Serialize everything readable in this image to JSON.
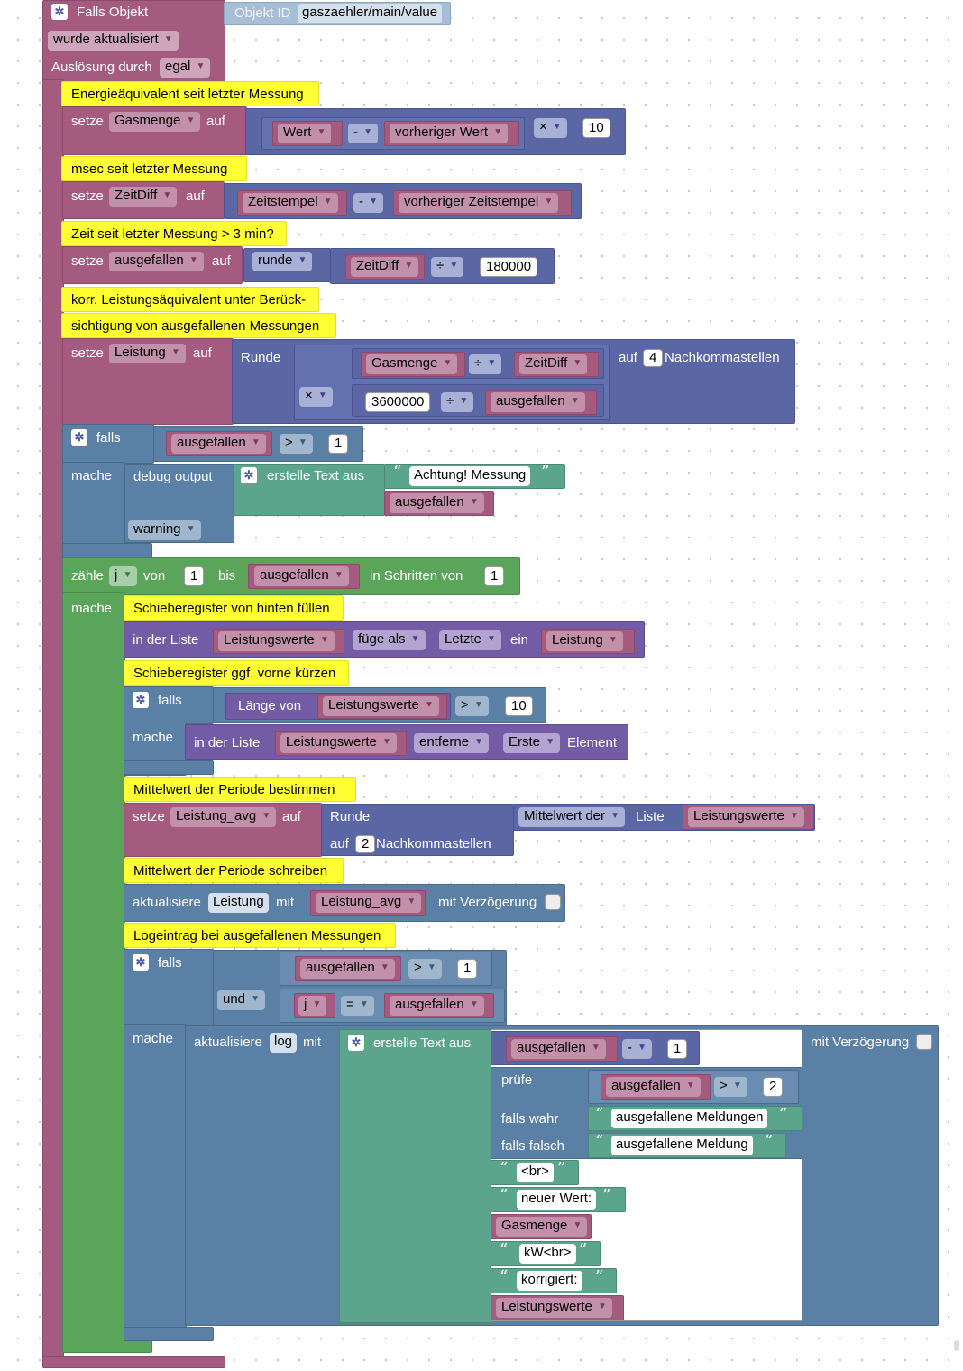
{
  "trigger": {
    "title": "Falls Objekt",
    "object_id_label": "Objekt ID",
    "object_id": "gaszaehler/main/value",
    "event": "wurde aktualisiert",
    "cause_label": "Auslösung durch",
    "cause": "egal"
  },
  "w": {
    "setze": "setze",
    "auf": "auf",
    "falls": "falls",
    "mache": "mache",
    "runde_title": "Runde",
    "auf_label": "auf",
    "nachkomma": "Nachkommastellen"
  },
  "c1": {
    "comment": "Energieäquivalent seit letzter Messung",
    "var": "Gasmenge",
    "a": "Wert",
    "op": "-",
    "b": "vorheriger Wert",
    "mul": "×",
    "n": "10"
  },
  "c2": {
    "comment": "msec seit letzter Messung",
    "var": "ZeitDiff",
    "a": "Zeitstempel",
    "op": "-",
    "b": "vorheriger Zeitstempel"
  },
  "c3": {
    "comment": "Zeit seit letzter Messung > 3 min?",
    "var": "ausgefallen",
    "round": "runde",
    "a": "ZeitDiff",
    "op": "÷",
    "n": "180000"
  },
  "c4": {
    "comment1": "korr. Leistungsäquivalent unter Berück-",
    "comment2": "sichtigung von ausgefallenen Messungen",
    "var": "Leistung",
    "a": "Gasmenge",
    "div": "÷",
    "b": "ZeitDiff",
    "mul": "×",
    "n3": "3600000",
    "div2": "÷",
    "c": "ausgefallen",
    "digits": "4"
  },
  "if1": {
    "a": "ausgefallen",
    "op": ">",
    "n": "1",
    "debug": "debug output",
    "textjoin": "erstelle Text aus",
    "str": "Achtung! Messung",
    "v": "ausgefallen",
    "level": "warning"
  },
  "loop": {
    "label": "zähle",
    "var": "j",
    "from": "von",
    "n1": "1",
    "to": "bis",
    "to_var": "ausgefallen",
    "step": "in Schritten von",
    "n2": "1"
  },
  "ls1": {
    "comment": "Schieberegister von hinten füllen",
    "in": "in der Liste",
    "list": "Leistungswerte",
    "mode": "füge als",
    "pos": "Letzte",
    "ein": "ein",
    "val": "Leistung"
  },
  "ls2": {
    "comment": "Schieberegister ggf. vorne kürzen",
    "len": "Länge von",
    "list": "Leistungswerte",
    "op": ">",
    "n": "10",
    "in": "in der Liste",
    "list2": "Leistungswerte",
    "mode": "entferne",
    "pos": "Erste",
    "elem": "Element"
  },
  "avg": {
    "comment": "Mittelwert der Periode bestimmen",
    "var": "Leistung_avg",
    "op": "Mittelwert der",
    "liste": "Liste",
    "list": "Leistungswerte",
    "digits": "2"
  },
  "upd": {
    "comment": "Mittelwert der Periode schreiben",
    "label": "aktualisiere",
    "state": "Leistung",
    "mit": "mit",
    "val": "Leistung_avg",
    "delay": "mit Verzögerung"
  },
  "log": {
    "comment": "Logeintrag bei ausgefallenen Messungen",
    "a": "ausgefallen",
    "op": ">",
    "n": "1",
    "and": "und",
    "b": "j",
    "eq": "=",
    "c": "ausgefallen",
    "label": "aktualisiere",
    "state": "log",
    "mit": "mit",
    "textjoin": "erstelle Text aus",
    "delay": "mit Verzögerung",
    "minus_var": "ausgefallen",
    "minus": "-",
    "minus_n": "1",
    "pruefe": "prüfe",
    "cmp_var": "ausgefallen",
    "cmp": ">",
    "cmp_n": "2",
    "true_label": "falls wahr",
    "true_str": "ausgefallene Meldungen",
    "false_label": "falls falsch",
    "false_str": "ausgefallene Meldung",
    "s_br": "<br>",
    "s_new": "neuer Wert:",
    "v_gas": "Gasmenge",
    "s_kw": "kW<br>",
    "s_corr": "korrigiert:",
    "v_list": "Leistungswerte"
  },
  "icons": [
    "gear-icon",
    "dropdown-arrow-icon",
    "quote-open-icon",
    "quote-close-icon",
    "checkbox-icon"
  ],
  "colors": {
    "event": "#a55b80",
    "logic": "#5b80a5",
    "math": "#5b67a5",
    "text": "#5ba58c",
    "list": "#745ba5",
    "loop": "#5ba55b",
    "comment": "#ffff33"
  }
}
